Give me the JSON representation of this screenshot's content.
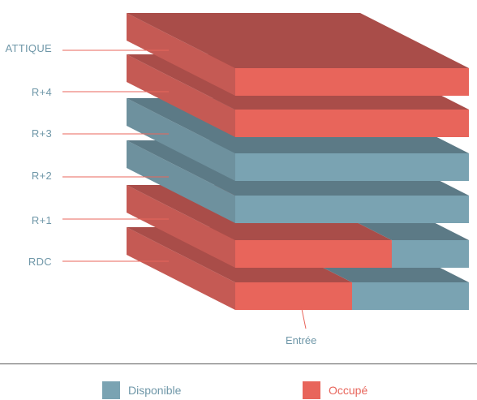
{
  "colors": {
    "occupied": {
      "top": "#a94d49",
      "left": "#c55a54",
      "front": "#e8655b"
    },
    "available": {
      "top": "#5c7a86",
      "left": "#6e919e",
      "front": "#7aa3b2"
    },
    "label_text": "#6f97a8",
    "leader_line": "#e8655b"
  },
  "floors": [
    {
      "label": "ATTIQUE",
      "occupied_fraction": 1.0
    },
    {
      "label": "R+4",
      "occupied_fraction": 1.0
    },
    {
      "label": "R+3",
      "occupied_fraction": 0.0
    },
    {
      "label": "R+2",
      "occupied_fraction": 0.0
    },
    {
      "label": "R+1",
      "occupied_fraction": 0.67
    },
    {
      "label": "RDC",
      "occupied_fraction": 0.5
    }
  ],
  "entrance_label": "Entrée",
  "legend": {
    "available_label": "Disponible",
    "occupied_label": "Occupé"
  }
}
